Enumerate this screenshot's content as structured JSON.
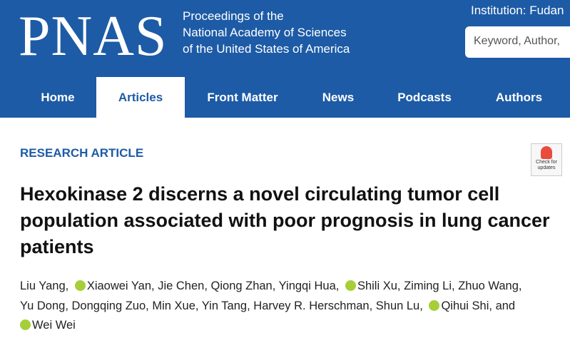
{
  "header": {
    "logo": "PNAS",
    "subtitle": [
      "Proceedings of the",
      "National Academy of Sciences",
      "of the United States of America"
    ],
    "institution": "Institution: Fudan",
    "search_placeholder": "Keyword, Author,"
  },
  "nav": [
    "Home",
    "Articles",
    "Front Matter",
    "News",
    "Podcasts",
    "Authors"
  ],
  "article": {
    "kind": "RESEARCH ARTICLE",
    "badge": "Check for updates",
    "title": [
      "Hexokinase 2 discerns a novel circulating tumor cell",
      "population associated with poor prognosis in lung cancer",
      "patients"
    ],
    "separator": ",",
    "conjunction": "and",
    "authors": [
      "Liu Yang",
      "Xiaowei Yan",
      "Jie Chen",
      "Qiong Zhan",
      "Yingqi Hua",
      "Shili Xu",
      "Ziming Li",
      "Zhuo Wang",
      "Yu Dong",
      "Dongqing Zuo",
      "Min Xue",
      "Yin Tang",
      "Harvey R. Herschman",
      "Shun Lu",
      "Qihui Shi",
      "Wei Wei"
    ]
  }
}
